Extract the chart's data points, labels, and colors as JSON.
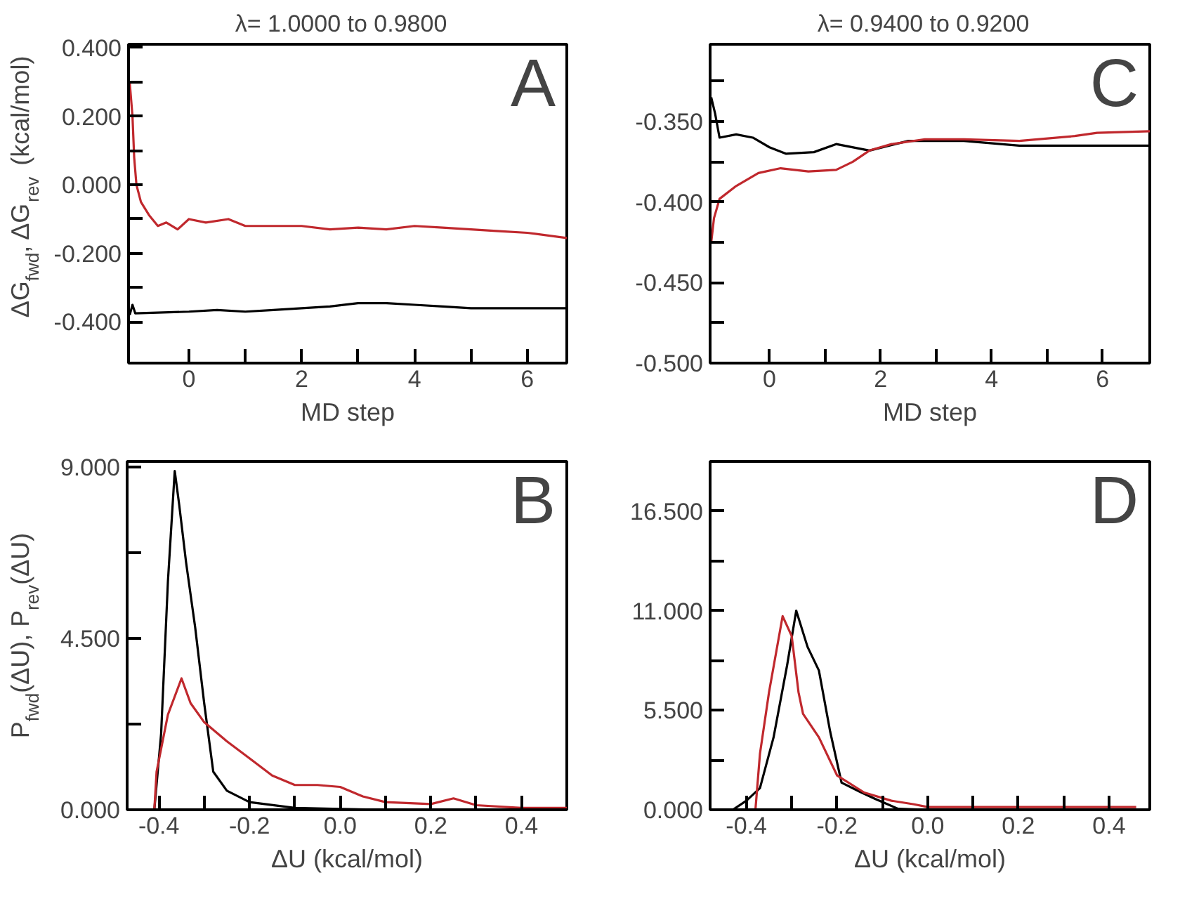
{
  "chart_data": [
    {
      "type": "line",
      "title": "λ= 1.0000 to   0.9800",
      "xlabel": "MD step",
      "ylabel": "ΔG$_{fwd}$, ΔG$_{rev}$ (kcal/mol)",
      "annotations": [
        "A"
      ],
      "grid": false,
      "xlim": [
        -1.07,
        6.7
      ],
      "ylim": [
        -0.52,
        0.41
      ],
      "xticks": [
        0,
        {
          "value": 1,
          "label": null
        },
        2,
        {
          "value": 3,
          "label": null
        },
        4,
        {
          "value": 5,
          "label": null
        },
        6
      ],
      "yticks": [
        {
          "value": 0.4,
          "label": "0.400"
        },
        {
          "value": 0.3,
          "label": null
        },
        {
          "value": 0.2,
          "label": "0.200"
        },
        {
          "value": 0.1,
          "label": null
        },
        {
          "value": 0,
          "label": "0.000"
        },
        {
          "value": -0.1,
          "label": null
        },
        {
          "value": -0.2,
          "label": "-0.200"
        },
        {
          "value": -0.3,
          "label": null
        },
        {
          "value": -0.4,
          "label": "-0.400"
        }
      ],
      "series": [
        {
          "color": "#000000",
          "x": [
            -1.05,
            -1.0,
            -0.95,
            0,
            0.5,
            1,
            1.5,
            2,
            2.5,
            3,
            3.5,
            4,
            4.5,
            5,
            6,
            6.7
          ],
          "values": [
            -0.38,
            -0.35,
            -0.375,
            -0.37,
            -0.365,
            -0.37,
            -0.365,
            -0.36,
            -0.355,
            -0.345,
            -0.345,
            -0.35,
            -0.355,
            -0.36,
            -0.36,
            -0.36
          ]
        },
        {
          "color": "#c0282d",
          "x": [
            -1.05,
            -1.0,
            -0.97,
            -0.93,
            -0.85,
            -0.7,
            -0.55,
            -0.4,
            -0.2,
            0,
            0.3,
            0.7,
            1.0,
            1.5,
            2,
            2.5,
            3,
            3.5,
            4,
            4.5,
            5,
            5.5,
            6,
            6.7
          ],
          "values": [
            0.3,
            0.2,
            0.08,
            0.0,
            -0.05,
            -0.09,
            -0.12,
            -0.11,
            -0.13,
            -0.1,
            -0.11,
            -0.1,
            -0.12,
            -0.12,
            -0.12,
            -0.13,
            -0.125,
            -0.13,
            -0.12,
            -0.125,
            -0.13,
            -0.135,
            -0.14,
            -0.155
          ]
        }
      ]
    },
    {
      "type": "line",
      "title": "λ= 0.9400 to   0.9200",
      "xlabel": "MD step",
      "annotations": [
        "C"
      ],
      "grid": false,
      "xlim": [
        -1.07,
        6.85
      ],
      "ylim": [
        -0.5,
        -0.302
      ],
      "xticks": [
        0,
        {
          "value": 1,
          "label": null
        },
        2,
        {
          "value": 3,
          "label": null
        },
        4,
        {
          "value": 5,
          "label": null
        },
        6
      ],
      "yticks": [
        {
          "value": -0.325,
          "label": null
        },
        {
          "value": -0.35,
          "label": "-0.350"
        },
        {
          "value": -0.375,
          "label": null
        },
        {
          "value": -0.4,
          "label": "-0.400"
        },
        {
          "value": -0.425,
          "label": null
        },
        {
          "value": -0.45,
          "label": "-0.450"
        },
        {
          "value": -0.475,
          "label": null
        },
        {
          "value": -0.5,
          "label": "-0.500"
        }
      ],
      "series": [
        {
          "color": "#000000",
          "x": [
            -1.05,
            -0.98,
            -0.9,
            -0.6,
            -0.3,
            0,
            0.3,
            0.8,
            1.2,
            1.8,
            2.5,
            3.5,
            4.5,
            6.85
          ],
          "values": [
            -0.335,
            -0.345,
            -0.36,
            -0.358,
            -0.36,
            -0.366,
            -0.37,
            -0.369,
            -0.364,
            -0.368,
            -0.362,
            -0.362,
            -0.365,
            -0.365
          ]
        },
        {
          "color": "#c0282d",
          "x": [
            -1.05,
            -1.0,
            -0.9,
            -0.6,
            -0.2,
            0.2,
            0.7,
            1.2,
            1.5,
            1.8,
            2.2,
            2.8,
            3.5,
            4.5,
            5.5,
            5.9,
            6.85
          ],
          "values": [
            -0.425,
            -0.41,
            -0.398,
            -0.39,
            -0.382,
            -0.379,
            -0.381,
            -0.38,
            -0.375,
            -0.368,
            -0.364,
            -0.361,
            -0.361,
            -0.362,
            -0.359,
            -0.357,
            -0.356
          ]
        }
      ]
    },
    {
      "type": "line",
      "xlabel": "ΔU (kcal/mol)",
      "ylabel": "P$_{fwd}$(ΔU), P$_{rev}$(ΔU)",
      "annotations": [
        "B"
      ],
      "grid": false,
      "xlim": [
        -0.47,
        0.5
      ],
      "ylim": [
        0,
        9.15
      ],
      "xticks": [
        -0.4,
        {
          "value": -0.3,
          "label": null
        },
        -0.2,
        {
          "value": -0.1,
          "label": null
        },
        {
          "value": 0,
          "label": "0.0"
        },
        {
          "value": 0.1,
          "label": null
        },
        0.2,
        {
          "value": 0.3,
          "label": null
        },
        0.4
      ],
      "yticks": [
        {
          "value": 0,
          "label": "0.000"
        },
        {
          "value": 2.25,
          "label": null
        },
        {
          "value": 4.5,
          "label": "4.500"
        },
        {
          "value": 6.75,
          "label": null
        },
        {
          "value": 9,
          "label": "9.000"
        }
      ],
      "series": [
        {
          "color": "#000000",
          "x": [
            -0.41,
            -0.395,
            -0.38,
            -0.365,
            -0.355,
            -0.34,
            -0.32,
            -0.3,
            -0.28,
            -0.25,
            -0.2,
            -0.1,
            0.0,
            0.1,
            0.3
          ],
          "values": [
            0,
            2.0,
            6.0,
            8.9,
            8.0,
            6.5,
            4.8,
            2.8,
            1.0,
            0.5,
            0.2,
            0.05,
            0.02,
            0.0,
            0.0
          ]
        },
        {
          "color": "#c0282d",
          "x": [
            -0.41,
            -0.405,
            -0.38,
            -0.35,
            -0.33,
            -0.3,
            -0.25,
            -0.2,
            -0.15,
            -0.1,
            -0.05,
            0.0,
            0.05,
            0.1,
            0.2,
            0.25,
            0.3,
            0.4,
            0.5
          ],
          "values": [
            0.0,
            1.0,
            2.5,
            3.45,
            2.8,
            2.3,
            1.8,
            1.35,
            0.9,
            0.65,
            0.65,
            0.6,
            0.35,
            0.2,
            0.15,
            0.3,
            0.12,
            0.05,
            0.05
          ]
        }
      ]
    },
    {
      "type": "line",
      "xlabel": "ΔU (kcal/mol)",
      "annotations": [
        "D"
      ],
      "grid": false,
      "xlim": [
        -0.48,
        0.49
      ],
      "ylim": [
        0,
        19.25
      ],
      "xticks": [
        -0.4,
        {
          "value": -0.3,
          "label": null
        },
        -0.2,
        {
          "value": -0.1,
          "label": null
        },
        {
          "value": 0,
          "label": "0.0"
        },
        {
          "value": 0.1,
          "label": null
        },
        0.2,
        {
          "value": 0.3,
          "label": null
        },
        0.4
      ],
      "yticks": [
        {
          "value": 0,
          "label": "0.000"
        },
        {
          "value": 2.75,
          "label": null
        },
        {
          "value": 5.5,
          "label": "5.500"
        },
        {
          "value": 8.25,
          "label": null
        },
        {
          "value": 11,
          "label": "11.000"
        },
        {
          "value": 13.75,
          "label": null
        },
        {
          "value": 16.5,
          "label": "16.500"
        }
      ],
      "series": [
        {
          "color": "#000000",
          "x": [
            -0.43,
            -0.4,
            -0.37,
            -0.34,
            -0.31,
            -0.29,
            -0.265,
            -0.24,
            -0.215,
            -0.19,
            -0.15,
            -0.116,
            -0.065,
            0.0
          ],
          "values": [
            0,
            0.5,
            1.2,
            4.0,
            8.0,
            11.0,
            9.0,
            7.7,
            4.3,
            1.5,
            1.0,
            0.6,
            0.05,
            0.0
          ]
        },
        {
          "color": "#c0282d",
          "x": [
            -0.38,
            -0.37,
            -0.35,
            -0.32,
            -0.3,
            -0.285,
            -0.275,
            -0.24,
            -0.2,
            -0.14,
            -0.08,
            -0.03,
            0.0,
            0.2,
            0.46
          ],
          "values": [
            0,
            3.1,
            6.5,
            10.7,
            9.6,
            6.5,
            5.3,
            4.0,
            1.9,
            0.95,
            0.5,
            0.3,
            0.15,
            0.15,
            0.15
          ]
        }
      ]
    }
  ]
}
